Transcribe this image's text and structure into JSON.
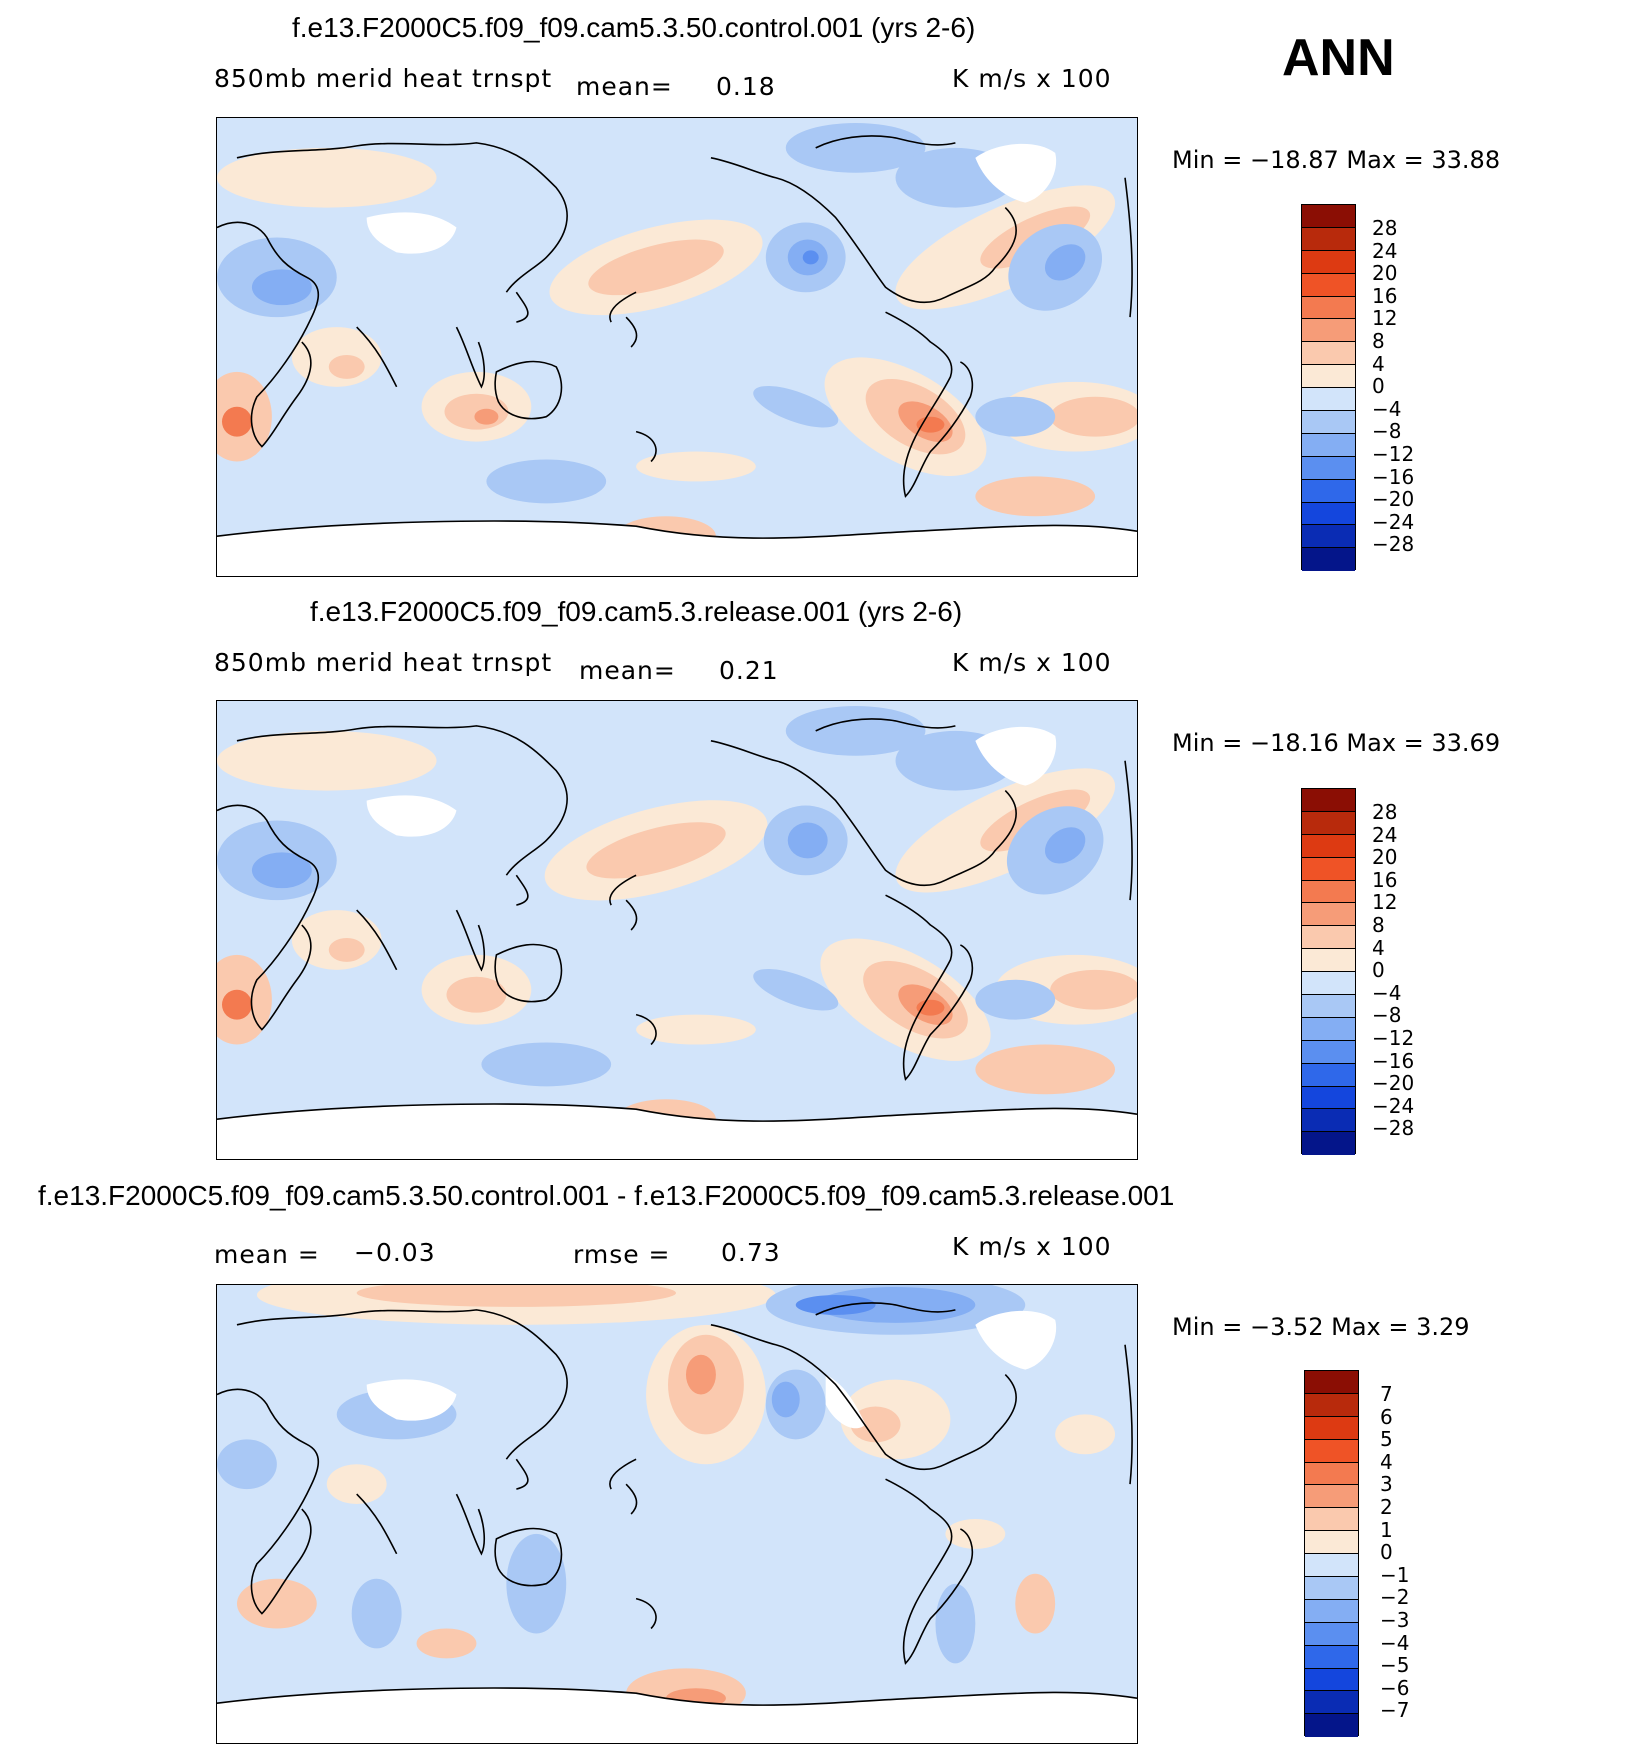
{
  "season": "ANN",
  "palette": {
    "warm": [
      "#fbe9d6",
      "#fac9ae",
      "#f69c78",
      "#f37a50",
      "#ef5326",
      "#dd3a12",
      "#b82a0c",
      "#8b0e04"
    ],
    "cool": [
      "#d2e4fa",
      "#a9c8f5",
      "#84aef3",
      "#5b8ff0",
      "#2f68ea",
      "#1446dd",
      "#0a2cb4",
      "#04158a"
    ],
    "land": "#ffffff",
    "coast": "#000000"
  },
  "panels": [
    {
      "title": "f.e13.F2000C5.f09_f09.cam5.3.50.control.001 (yrs 2-6)",
      "left_label": "850mb  merid  heat  trnspt",
      "mean_label": "mean=",
      "mean_value": "0.18",
      "units": "K  m/s  x  100",
      "min_max": "Min  =  −18.87  Max  =    33.88",
      "levels": [
        "28",
        "24",
        "20",
        "16",
        "12",
        "8",
        "4",
        "0",
        "−4",
        "−8",
        "−12",
        "−16",
        "−20",
        "−24",
        "−28"
      ]
    },
    {
      "title": "f.e13.F2000C5.f09_f09.cam5.3.release.001 (yrs 2-6)",
      "left_label": "850mb  merid  heat  trnspt",
      "mean_label": "mean=",
      "mean_value": "0.21",
      "units": "K  m/s  x  100",
      "min_max": "Min  =  −18.16  Max  =    33.69",
      "levels": [
        "28",
        "24",
        "20",
        "16",
        "12",
        "8",
        "4",
        "0",
        "−4",
        "−8",
        "−12",
        "−16",
        "−20",
        "−24",
        "−28"
      ]
    },
    {
      "title": "f.e13.F2000C5.f09_f09.cam5.3.50.control.001 - f.e13.F2000C5.f09_f09.cam5.3.release.001",
      "mean_label": "mean  =",
      "mean_value": "−0.03",
      "rmse_label": "rmse  =",
      "rmse_value": "0.73",
      "units": "K  m/s  x  100",
      "min_max": "Min  =    −3.52  Max  =     3.29",
      "levels": [
        "7",
        "6",
        "5",
        "4",
        "3",
        "2",
        "1",
        "0",
        "−1",
        "−2",
        "−3",
        "−4",
        "−5",
        "−6",
        "−7"
      ]
    }
  ]
}
